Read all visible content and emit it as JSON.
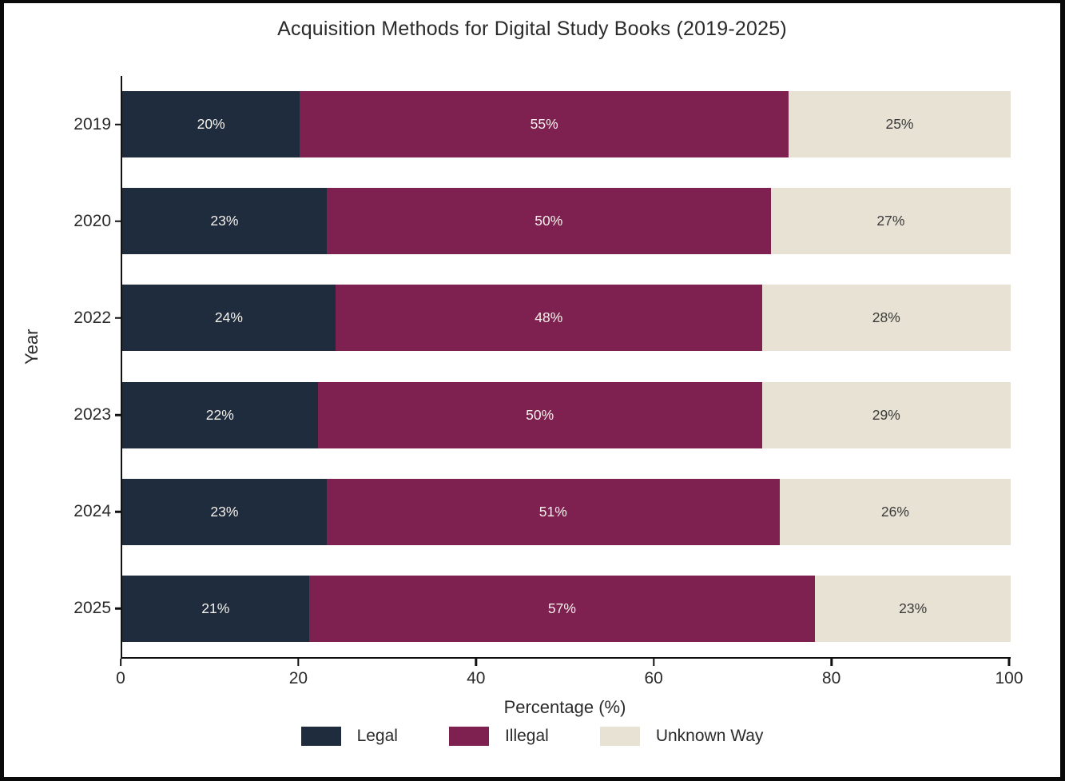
{
  "chart_data": {
    "type": "bar",
    "orientation": "horizontal",
    "stacked": true,
    "title": "Acquisition Methods for Digital Study Books (2019-2025)",
    "xlabel": "Percentage (%)",
    "ylabel": "Year",
    "xlim": [
      0,
      100
    ],
    "x_ticks": [
      "0",
      "20",
      "40",
      "60",
      "80",
      "100"
    ],
    "grid": false,
    "legend_position": "bottom",
    "categories": [
      "2019",
      "2020",
      "2022",
      "2023",
      "2024",
      "2025"
    ],
    "series": [
      {
        "name": "Legal",
        "color": "#1f2c3e",
        "values": [
          20,
          23,
          24,
          22,
          23,
          21
        ]
      },
      {
        "name": "Illegal",
        "color": "#7e2151",
        "values": [
          55,
          50,
          48,
          50,
          51,
          57
        ]
      },
      {
        "name": "Unknown Way",
        "color": "#e7e2d4",
        "values": [
          25,
          27,
          28,
          29,
          26,
          23
        ]
      }
    ],
    "display_labels": [
      [
        "20%",
        "55%",
        "25%"
      ],
      [
        "23%",
        "50%",
        "27%"
      ],
      [
        "24%",
        "48%",
        "28%"
      ],
      [
        "22%",
        "50%",
        "29%"
      ],
      [
        "23%",
        "51%",
        "26%"
      ],
      [
        "21%",
        "57%",
        "23%"
      ]
    ],
    "bar_label_color_on_dark": "#f4f1ea",
    "bar_label_color_on_light": "#3a3a3a",
    "axis_color": "#111111",
    "background_color": "#ffffff"
  }
}
